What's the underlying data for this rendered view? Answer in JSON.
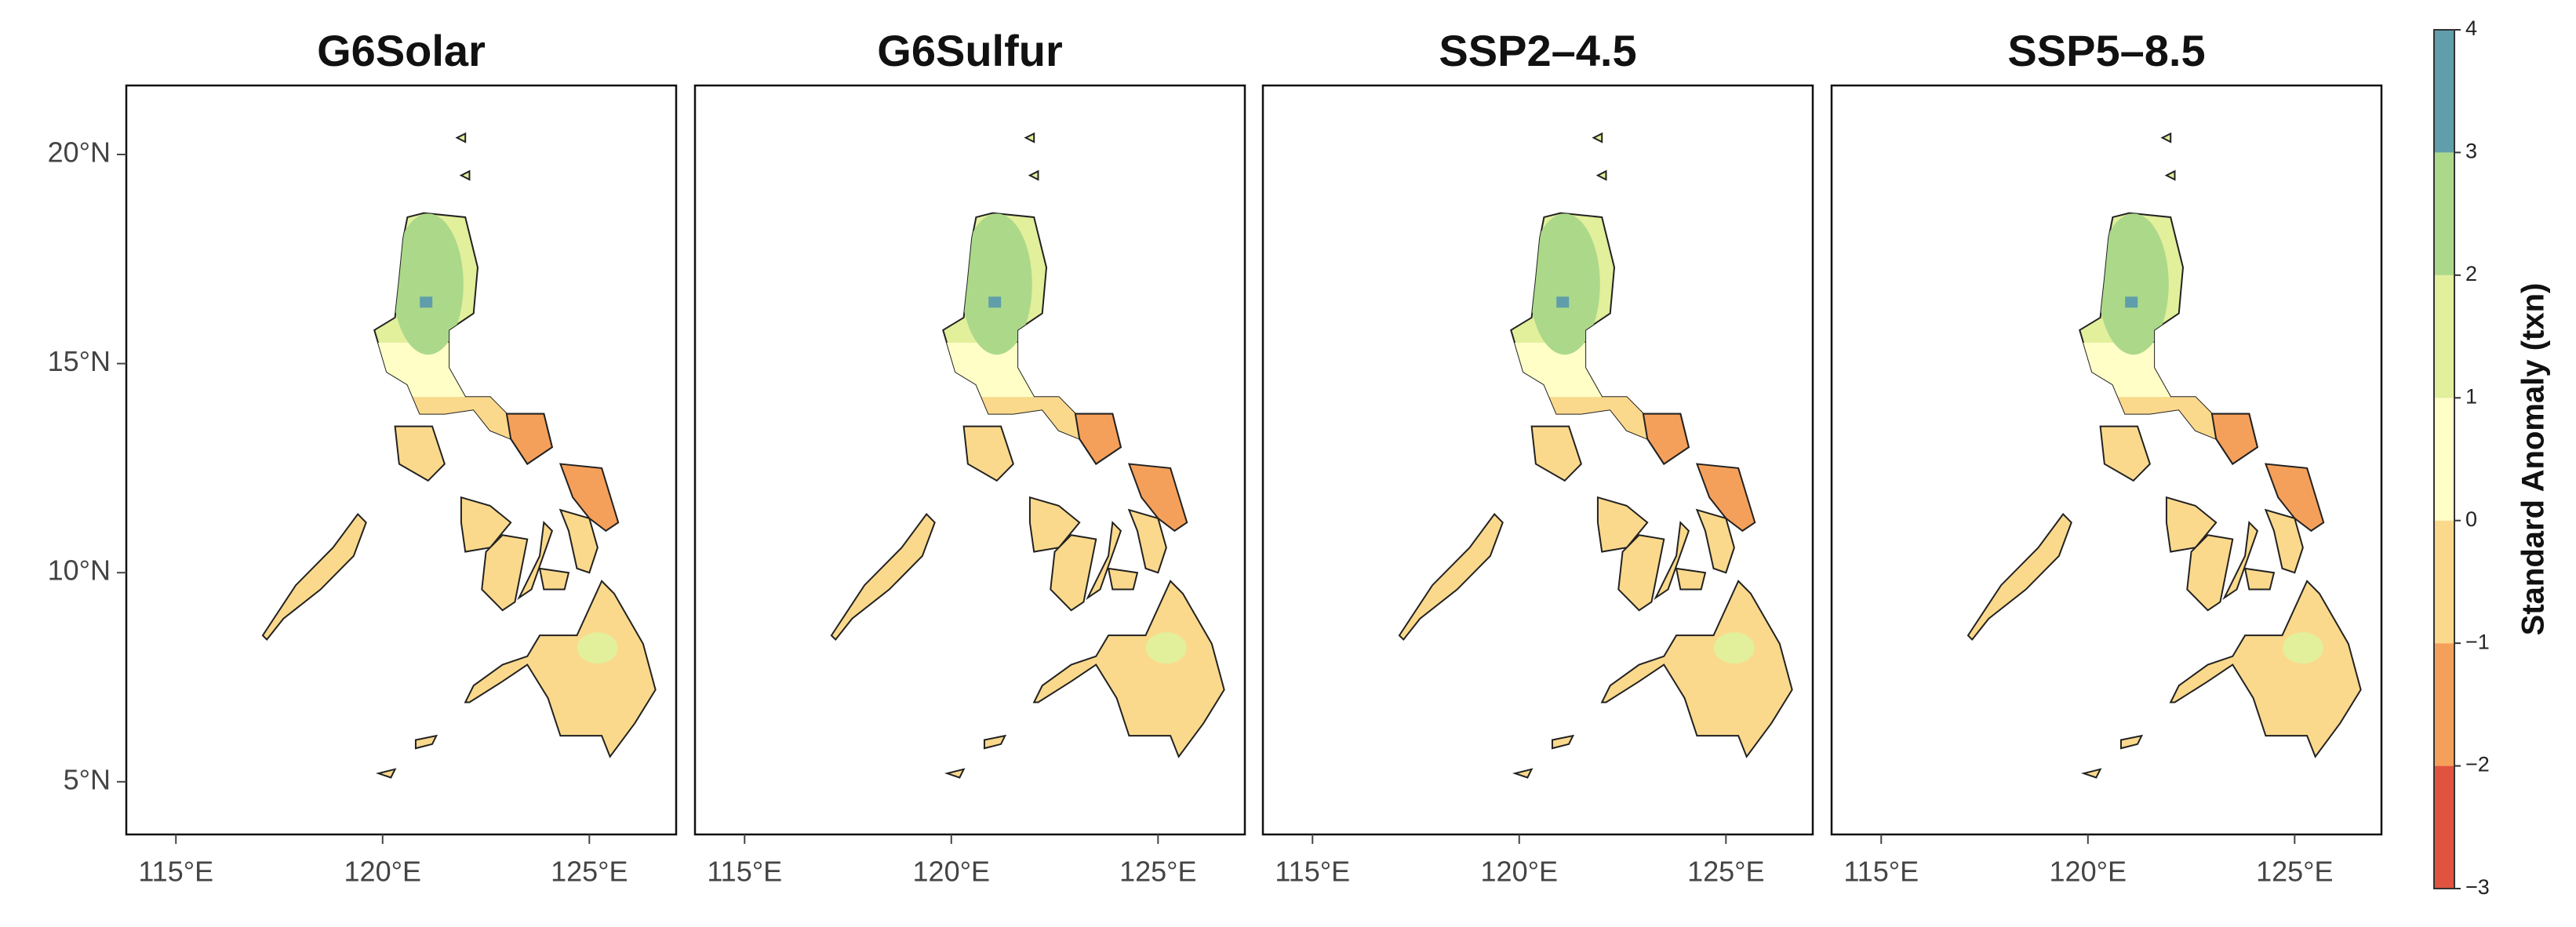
{
  "panels": [
    {
      "title": "G6Solar"
    },
    {
      "title": "G6Sulfur"
    },
    {
      "title": "SSP2–4.5"
    },
    {
      "title": "SSP5–8.5"
    }
  ],
  "map": {
    "xlim": [
      113.8,
      127.1
    ],
    "ylim": [
      3.74,
      21.65
    ],
    "xticks": [
      {
        "value": 115,
        "label": "115°E"
      },
      {
        "value": 120,
        "label": "120°E"
      },
      {
        "value": 125,
        "label": "125°E"
      }
    ],
    "yticks": [
      {
        "value": 5,
        "label": "5°N"
      },
      {
        "value": 10,
        "label": "10°N"
      },
      {
        "value": 15,
        "label": "15°N"
      },
      {
        "value": 20,
        "label": "20°N"
      }
    ]
  },
  "colorbar": {
    "label": "Standard Anomaly (txn)",
    "ticks": [
      {
        "value": -3,
        "label": "−3"
      },
      {
        "value": -2,
        "label": "−2"
      },
      {
        "value": -1,
        "label": "−1"
      },
      0,
      1,
      2,
      3,
      4
    ],
    "colors": [
      "#e0533f",
      "#f5a05a",
      "#fbd98c",
      "#fefec6",
      "#e2ef9b",
      "#acd88a",
      "#5f9eaa"
    ]
  }
}
